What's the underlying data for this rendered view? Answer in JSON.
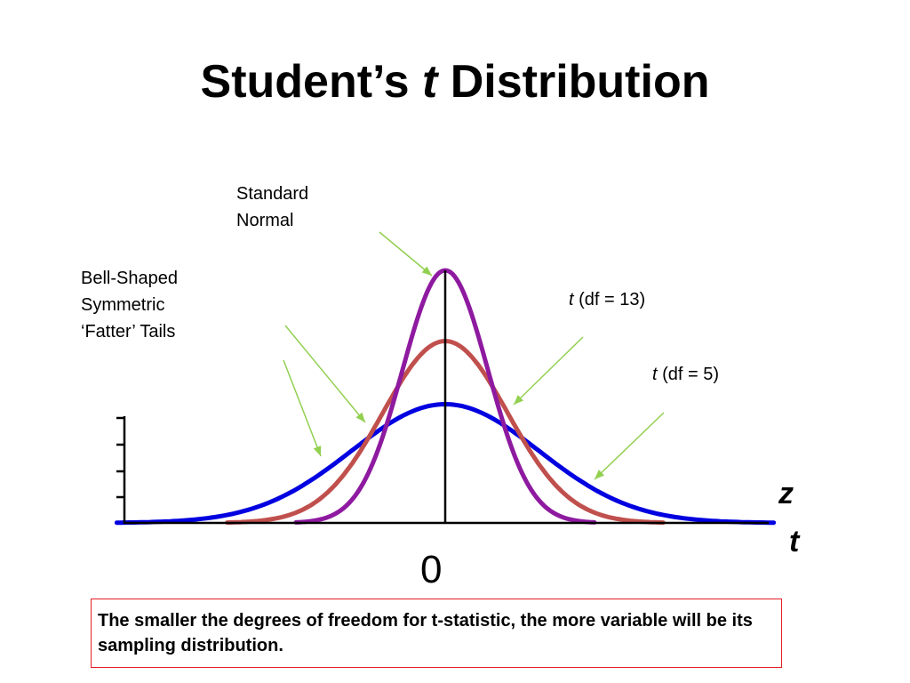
{
  "title": {
    "prefix": "Student’s ",
    "italic": "t",
    "suffix": " Distribution"
  },
  "annotations": {
    "standard_normal": [
      "Standard",
      "Normal"
    ],
    "bell_shaped": [
      "Bell-Shaped",
      "Symmetric",
      "‘Fatter’ Tails"
    ],
    "t13": {
      "italic": "t",
      "rest": " (df = 13)"
    },
    "t5": {
      "italic": "t",
      "rest": " (df = 5)"
    }
  },
  "note": "The smaller the degrees of freedom for t-statistic, the more variable will be its sampling distribution.",
  "colors": {
    "standard_normal": "#8e1aa0",
    "t13": "#c0504d",
    "t5": "#0000e0",
    "arrow": "#92d050",
    "axis": "#000000",
    "note_border": "#e31e24"
  },
  "chart_data": {
    "type": "line",
    "x_axis_labels": [
      "z",
      "t"
    ],
    "tick_labels": {
      "x": [
        "0"
      ]
    },
    "xlim": [
      -3.5,
      3.5
    ],
    "series": [
      {
        "id": "standard_normal",
        "sd": 0.5,
        "peak_relative": 1.0
      },
      {
        "id": "t13",
        "sd": 0.73,
        "peak_relative": 0.72
      },
      {
        "id": "t5",
        "sd": 1.1,
        "peak_relative": 0.47
      }
    ],
    "grid": false,
    "legend": "none"
  }
}
